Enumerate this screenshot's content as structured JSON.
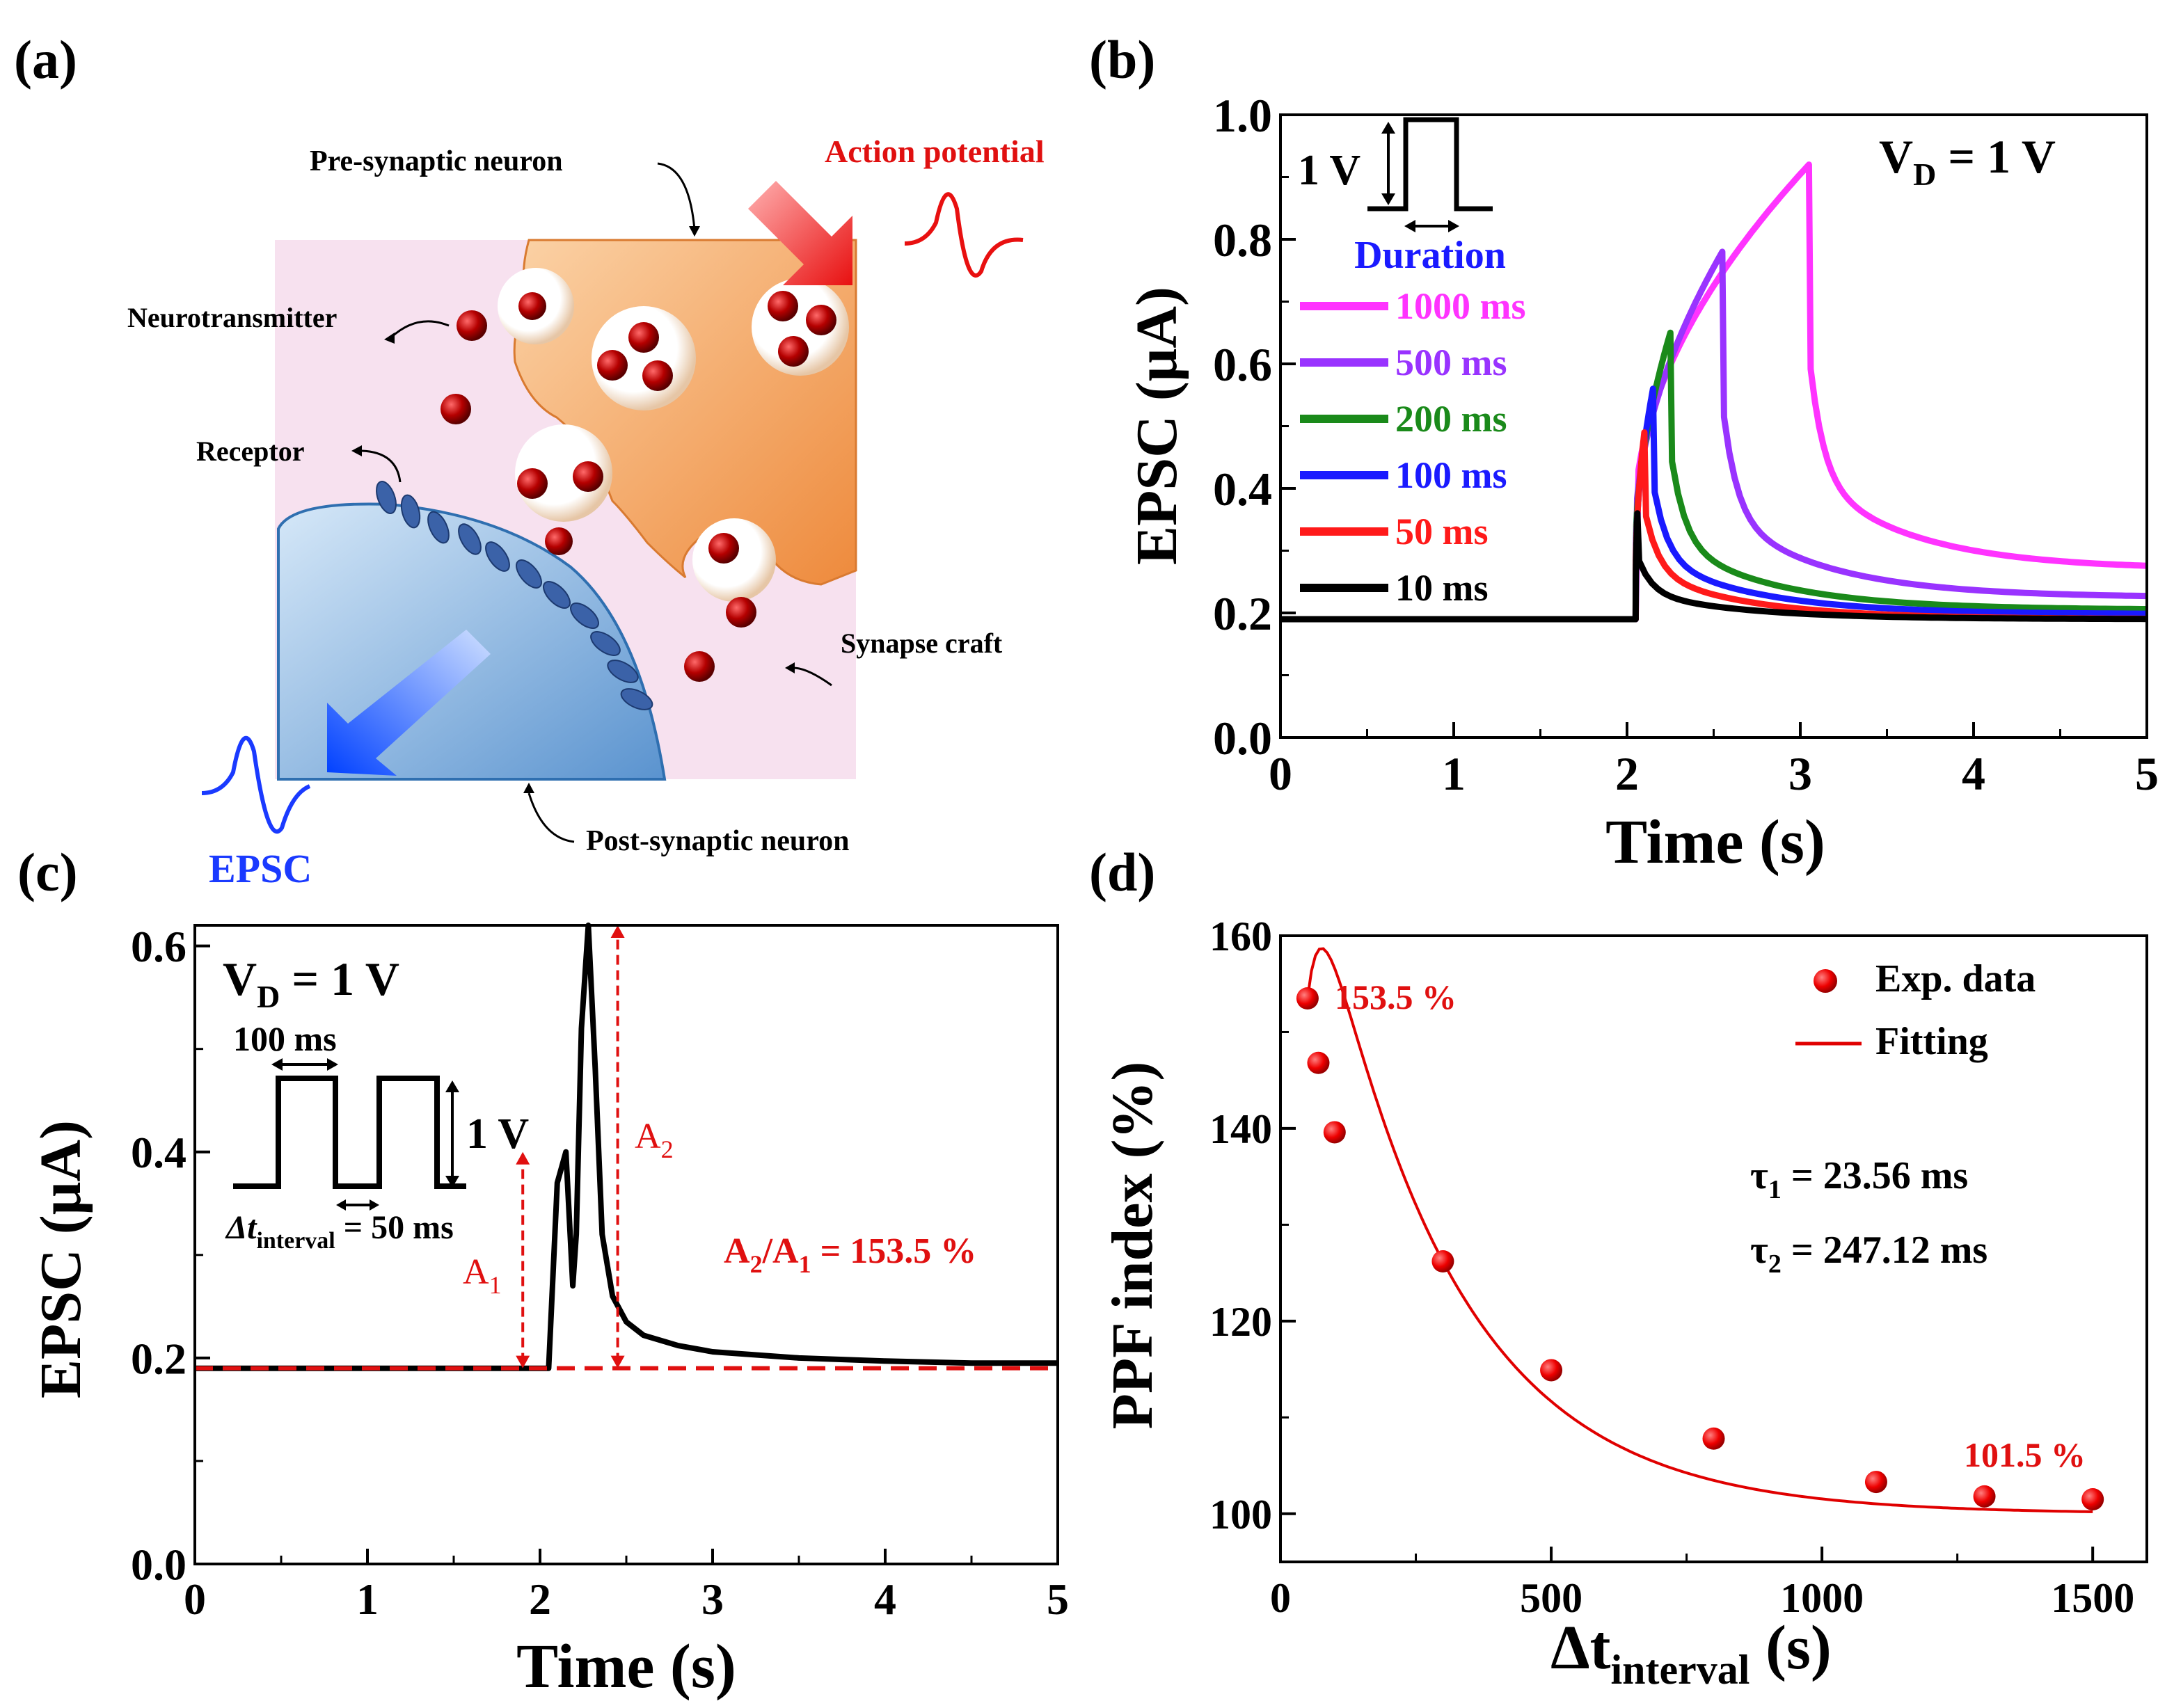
{
  "panel_a": {
    "label": "(a)",
    "pre": "Pre-synaptic neuron",
    "ap": "Action potential",
    "nt": "Neurotransmitter",
    "receptor": "Receptor",
    "cleft": "Synapse craft",
    "post": "Post-synaptic neuron",
    "epsc": "EPSC",
    "colors": {
      "pre": "#f4a460",
      "post": "#7fb2e5",
      "ball": "#b00000",
      "receptor": "#3a5f9a"
    }
  },
  "panel_b": {
    "label": "(b)",
    "ylabel": "EPSC (μA)",
    "xlabel": "Time (s)",
    "vd_main": "V",
    "vd_sub": "D",
    "vd_rest": " = 1 V",
    "pulse_v": "1 V",
    "duration": "Duration",
    "legend": [
      "1000 ms",
      "500 ms",
      "200 ms",
      "100 ms",
      "50 ms",
      "10 ms"
    ]
  },
  "panel_c": {
    "label": "(c)",
    "ylabel": "EPSC (μA)",
    "xlabel": "Time (s)",
    "vd_main": "V",
    "vd_sub": "D",
    "vd_rest": " = 1 V",
    "pulse_width": "100 ms",
    "pulse_v": "1 V",
    "dt_main": "Δt",
    "dt_sub": "interval",
    "dt_rest": " = 50 ms",
    "a1_main": "A",
    "a1_sub": "1",
    "a2_main": "A",
    "a2_sub": "2",
    "ratio_a2": "A",
    "ratio_a2_sub": "2",
    "ratio_a1": "/A",
    "ratio_a1_sub": "1",
    "ratio_rest": " = 153.5 %"
  },
  "panel_d": {
    "label": "(d)",
    "ylabel": "PPF index (%)",
    "xlabel_main": "Δt",
    "xlabel_sub": "interval",
    "xlabel_rest": " (s)",
    "legend_exp": "Exp. data",
    "legend_fit": "Fitting",
    "tau1_main": "τ",
    "tau1_sub": "1",
    "tau1_rest": " = 23.56 ms",
    "tau2_main": "τ",
    "tau2_sub": "2",
    "tau2_rest": " = 247.12 ms",
    "ann_first": "153.5 %",
    "ann_last": "101.5 %"
  },
  "chart_data": [
    {
      "panel": "b",
      "type": "line",
      "title": "",
      "xlabel": "Time (s)",
      "ylabel": "EPSC (μA)",
      "xlim": [
        0,
        5
      ],
      "ylim": [
        0,
        1.0
      ],
      "xticks": [
        0,
        1,
        2,
        3,
        4,
        5
      ],
      "yticks": [
        0.0,
        0.2,
        0.4,
        0.6,
        0.8,
        1.0
      ],
      "ytick_labels": [
        "0.0",
        "0.2",
        "0.4",
        "0.6",
        "0.8",
        "1.0"
      ],
      "baseline": 0.19,
      "pulse_start": 2.05,
      "series": [
        {
          "name": "1000 ms",
          "color": "#ff33ff",
          "duration_s": 1.0,
          "peak": 0.92,
          "end_value": 0.27
        },
        {
          "name": "500 ms",
          "color": "#9933ff",
          "duration_s": 0.5,
          "peak": 0.78,
          "end_value": 0.225
        },
        {
          "name": "200 ms",
          "color": "#1a8a1a",
          "duration_s": 0.2,
          "peak": 0.65,
          "end_value": 0.205
        },
        {
          "name": "100 ms",
          "color": "#1a1aff",
          "duration_s": 0.1,
          "peak": 0.56,
          "end_value": 0.198
        },
        {
          "name": "50 ms",
          "color": "#ff1a1a",
          "duration_s": 0.05,
          "peak": 0.49,
          "end_value": 0.19
        },
        {
          "name": "10 ms",
          "color": "#000000",
          "duration_s": 0.01,
          "peak": 0.36,
          "end_value": 0.19
        }
      ]
    },
    {
      "panel": "c",
      "type": "line",
      "xlabel": "Time (s)",
      "ylabel": "EPSC (μA)",
      "xlim": [
        0,
        5
      ],
      "ylim": [
        0,
        0.62
      ],
      "xticks": [
        0,
        1,
        2,
        3,
        4,
        5
      ],
      "yticks": [
        0.0,
        0.2,
        0.4,
        0.6
      ],
      "ytick_labels": [
        "0.0",
        "0.2",
        "0.4",
        "0.6"
      ],
      "baseline": 0.19,
      "series": [
        {
          "name": "EPSC",
          "color": "#000000",
          "x": [
            0,
            2.05,
            2.1,
            2.15,
            2.19,
            2.21,
            2.24,
            2.28,
            2.32,
            2.36,
            2.42,
            2.5,
            2.6,
            2.8,
            3.0,
            3.5,
            4.0,
            4.5,
            5.0
          ],
          "y": [
            0.19,
            0.19,
            0.37,
            0.4,
            0.27,
            0.32,
            0.52,
            0.62,
            0.48,
            0.32,
            0.26,
            0.235,
            0.222,
            0.212,
            0.206,
            0.2,
            0.197,
            0.195,
            0.195
          ]
        }
      ],
      "A1": 0.4,
      "A2": 0.62
    },
    {
      "panel": "d",
      "type": "scatter",
      "xlabel": "Δt interval (s)",
      "ylabel": "PPF index (%)",
      "xlim": [
        0,
        1600
      ],
      "ylim": [
        95,
        160
      ],
      "xticks": [
        0,
        500,
        1000,
        1500
      ],
      "yticks": [
        100,
        120,
        140,
        160
      ],
      "series": [
        {
          "name": "Exp. data",
          "color": "#e00000",
          "x": [
            50,
            70,
            100,
            300,
            500,
            800,
            1100,
            1300,
            1500
          ],
          "y": [
            153.5,
            146.8,
            139.6,
            126.2,
            114.9,
            107.8,
            103.3,
            101.8,
            101.5
          ]
        },
        {
          "name": "Fitting",
          "color": "#e00000",
          "type": "line",
          "model": "100 + C1*exp(-x/23.56) + C2*exp(-x/247.12)"
        }
      ]
    }
  ]
}
